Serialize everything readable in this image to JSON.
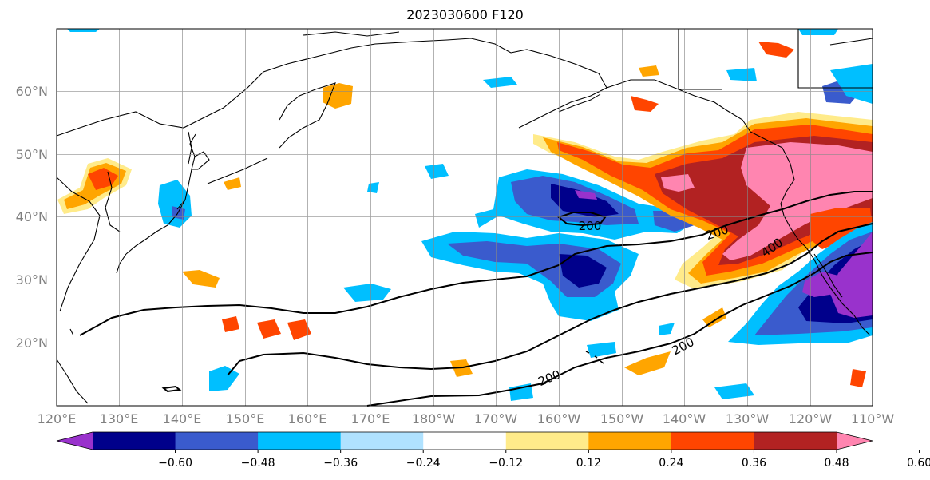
{
  "title": "2023030600 F120",
  "map": {
    "projection": "PlateCarree",
    "lon_ticks": [
      "120°E",
      "130°E",
      "140°E",
      "150°E",
      "160°E",
      "170°E",
      "180°W",
      "170°W",
      "160°W",
      "150°W",
      "140°W",
      "130°W",
      "120°W",
      "110°W"
    ],
    "lat_ticks": [
      "60°N",
      "50°N",
      "40°N",
      "30°N",
      "20°N"
    ],
    "gridlines": true
  },
  "contour_labels": [
    "200",
    "200",
    "400",
    "200",
    "200"
  ],
  "colorbar": {
    "ticks": [
      "−0.60",
      "−0.48",
      "−0.36",
      "−0.24",
      "−0.12",
      "0.12",
      "0.24",
      "0.36",
      "0.48",
      "0.60"
    ],
    "colors": [
      "#9932cc",
      "#00008b",
      "#3a5bcd",
      "#00bfff",
      "#b0e2ff",
      "#ffffff",
      "#ffeb8a",
      "#ffa500",
      "#ff4500",
      "#b22222",
      "#ff85b0"
    ],
    "extend": "both"
  }
}
